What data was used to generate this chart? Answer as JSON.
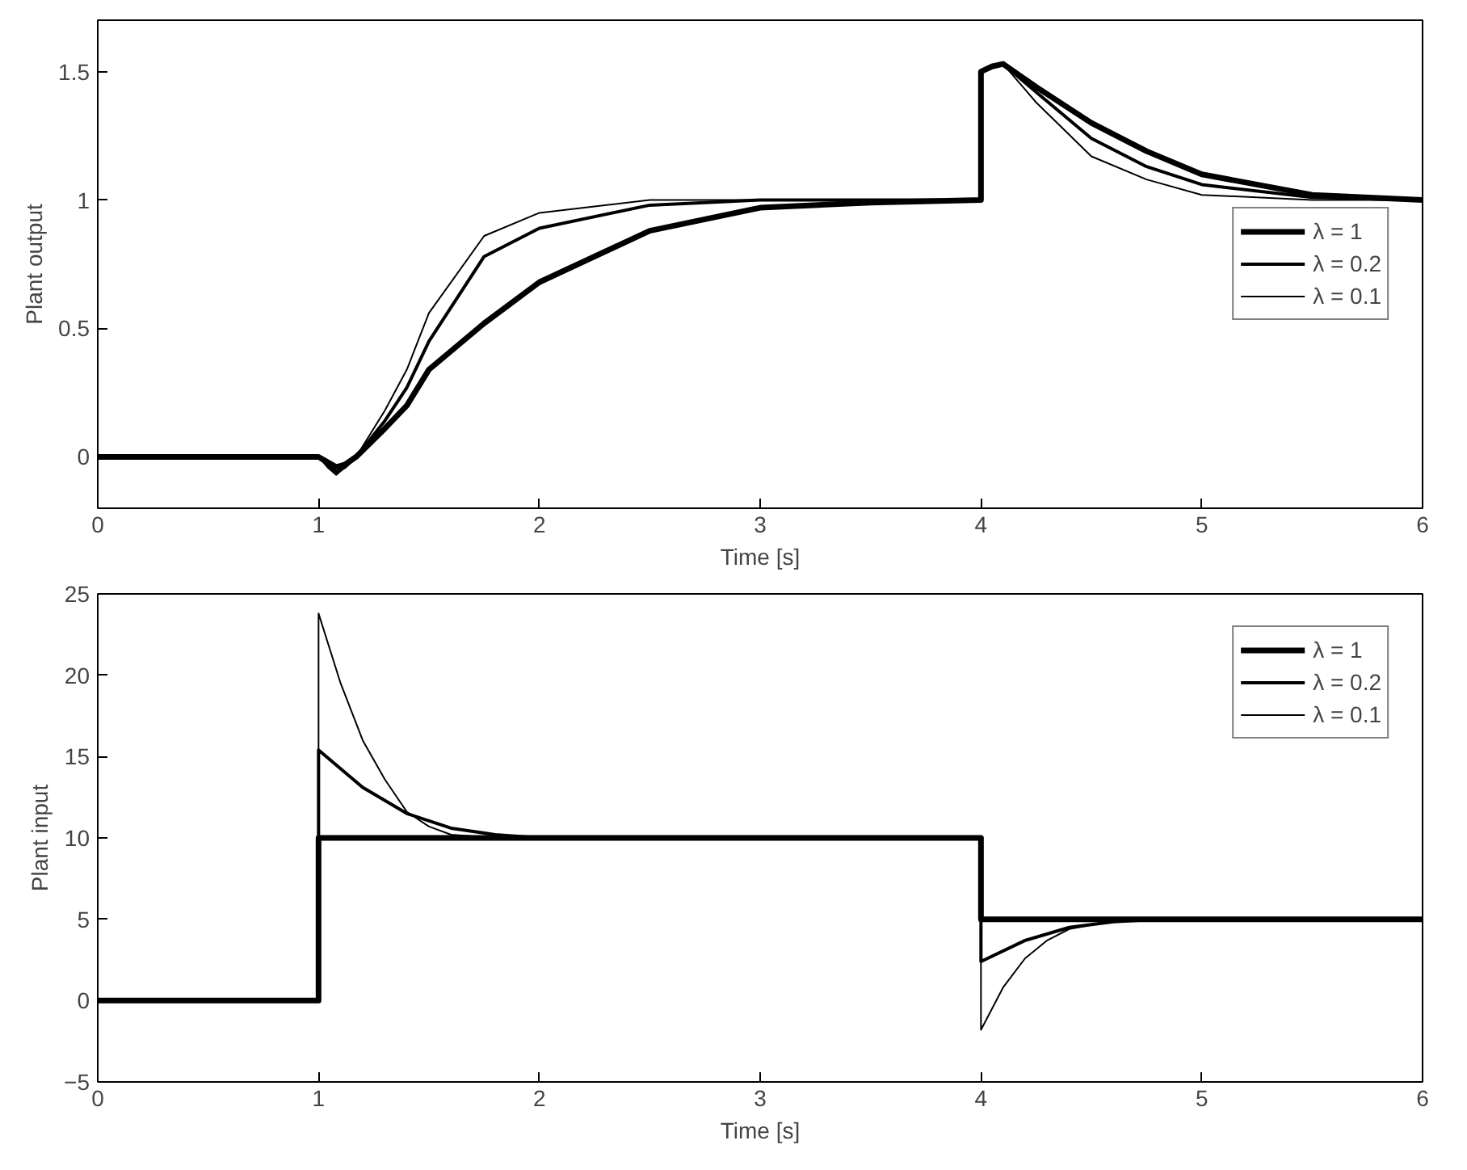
{
  "chart_data": [
    {
      "type": "line",
      "xlabel": "Time [s]",
      "ylabel": "Plant output",
      "xlim": [
        0,
        6
      ],
      "ylim": [
        -0.2,
        1.7
      ],
      "xticks": [
        0,
        1,
        2,
        3,
        4,
        5,
        6
      ],
      "yticks": [
        0,
        0.5,
        1,
        1.5
      ],
      "grid": false,
      "legend": "right",
      "line_style": "solid",
      "series": [
        {
          "name": "λ = 1",
          "color": "#000000",
          "x": [
            0,
            1,
            1.04,
            1.08,
            1.12,
            1.17,
            1.3,
            1.4,
            1.5,
            1.75,
            2,
            2.5,
            3,
            3.5,
            4,
            4,
            4.05,
            4.1,
            4.25,
            4.5,
            4.75,
            5,
            5.5,
            6
          ],
          "values": [
            0,
            0,
            -0.02,
            -0.04,
            -0.03,
            0,
            0.11,
            0.2,
            0.34,
            0.52,
            0.68,
            0.88,
            0.97,
            0.99,
            1,
            1.5,
            1.52,
            1.53,
            1.44,
            1.3,
            1.19,
            1.1,
            1.02,
            1
          ]
        },
        {
          "name": "λ = 0.2",
          "color": "#000000",
          "x": [
            0,
            1,
            1.04,
            1.08,
            1.12,
            1.17,
            1.3,
            1.4,
            1.5,
            1.75,
            2,
            2.5,
            3,
            3.5,
            4,
            4,
            4.05,
            4.1,
            4.25,
            4.5,
            4.75,
            5,
            5.5,
            6
          ],
          "values": [
            0,
            0,
            -0.03,
            -0.06,
            -0.04,
            0,
            0.14,
            0.27,
            0.45,
            0.78,
            0.89,
            0.98,
            1,
            1,
            1,
            1.5,
            1.52,
            1.53,
            1.42,
            1.24,
            1.13,
            1.06,
            1.01,
            1
          ]
        },
        {
          "name": "λ = 0.1",
          "color": "#000000",
          "x": [
            0,
            1,
            1.04,
            1.08,
            1.12,
            1.17,
            1.3,
            1.4,
            1.5,
            1.75,
            2,
            2.5,
            3,
            3.5,
            4,
            4,
            4.05,
            4.1,
            4.25,
            4.5,
            4.75,
            5,
            5.5,
            6
          ],
          "values": [
            0,
            0,
            -0.04,
            -0.07,
            -0.04,
            0,
            0.18,
            0.34,
            0.56,
            0.86,
            0.95,
            1,
            1,
            1,
            1,
            1.5,
            1.52,
            1.53,
            1.38,
            1.17,
            1.08,
            1.02,
            1,
            1
          ]
        }
      ]
    },
    {
      "type": "line",
      "xlabel": "Time [s]",
      "ylabel": "Plant input",
      "xlim": [
        0,
        6
      ],
      "ylim": [
        -5,
        25
      ],
      "xticks": [
        0,
        1,
        2,
        3,
        4,
        5,
        6
      ],
      "yticks": [
        {
          "value": -5,
          "label": "−5"
        },
        0,
        5,
        10,
        15,
        20,
        25
      ],
      "grid": false,
      "legend": "top right",
      "line_style": "solid",
      "series": [
        {
          "name": "λ = 1",
          "color": "#000000",
          "x": [
            0,
            1,
            1,
            4,
            4,
            6
          ],
          "values": [
            0,
            0,
            10,
            10,
            5,
            5
          ]
        },
        {
          "name": "λ = 0.2",
          "color": "#000000",
          "x": [
            0,
            1,
            1,
            1.2,
            1.4,
            1.6,
            1.8,
            2,
            4,
            4,
            4.2,
            4.4,
            4.6,
            4.8,
            6
          ],
          "values": [
            0,
            0,
            15.4,
            13.1,
            11.5,
            10.6,
            10.2,
            10,
            10,
            2.4,
            3.7,
            4.5,
            4.85,
            5,
            5
          ]
        },
        {
          "name": "λ = 0.1",
          "color": "#000000",
          "x": [
            0,
            1,
            1,
            1.1,
            1.2,
            1.3,
            1.4,
            1.5,
            1.6,
            1.8,
            4,
            4,
            4.1,
            4.2,
            4.3,
            4.4,
            4.6,
            4.8,
            6
          ],
          "values": [
            0,
            0,
            23.8,
            19.5,
            16,
            13.6,
            11.6,
            10.7,
            10.2,
            10,
            10,
            -1.8,
            0.8,
            2.6,
            3.7,
            4.4,
            4.9,
            5,
            5
          ]
        }
      ]
    }
  ]
}
